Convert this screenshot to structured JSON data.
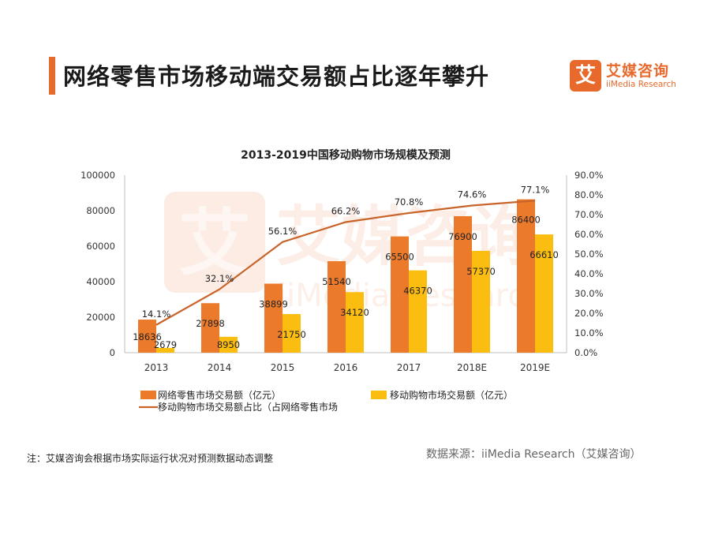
{
  "header": {
    "title": "网络零售市场移动端交易额占比逐年攀升"
  },
  "logo": {
    "mark": "艾",
    "name_cn": "艾媒咨询",
    "name_en": "iiMedia Research"
  },
  "watermark": {
    "mark": "艾",
    "name_cn": "艾媒咨询",
    "name_en": "iiMedia Research"
  },
  "chart_data": {
    "type": "bar",
    "title": "2013-2019中国移动购物市场规模及预测",
    "categories": [
      "2013",
      "2014",
      "2015",
      "2016",
      "2017",
      "2018E",
      "2019E"
    ],
    "series": [
      {
        "name": "网络零售市场交易额（亿元）",
        "type": "bar",
        "axis": "left",
        "color": "#ec7a2b",
        "values": [
          18636,
          27898,
          38899,
          51540,
          65500,
          76900,
          86400
        ],
        "labels": [
          "18636",
          "27898",
          "38899",
          "51540",
          "65500",
          "76900",
          "86400"
        ]
      },
      {
        "name": "移动购物市场交易额（亿元）",
        "type": "bar",
        "axis": "left",
        "color": "#fbbd0f",
        "values": [
          2679,
          8950,
          21750,
          34120,
          46370,
          57370,
          66610
        ],
        "labels": [
          "2679",
          "8950",
          "21750",
          "34120",
          "46370",
          "57370",
          "66610"
        ]
      },
      {
        "name": "移动购物市场交易额占比（占网络零售市场",
        "type": "line",
        "axis": "right",
        "color": "#c8642a",
        "values": [
          14.1,
          32.1,
          56.1,
          66.2,
          70.8,
          74.6,
          77.1
        ],
        "labels": [
          "14.1%",
          "32.1%",
          "56.1%",
          "66.2%",
          "70.8%",
          "74.6%",
          "77.1%"
        ]
      }
    ],
    "left_axis": {
      "ylim": [
        0,
        100000
      ],
      "ticks": [
        0,
        20000,
        40000,
        60000,
        80000,
        100000
      ],
      "tick_labels": [
        "0",
        "20000",
        "40000",
        "60000",
        "80000",
        "100000"
      ]
    },
    "right_axis": {
      "ylim": [
        0,
        90
      ],
      "ticks": [
        0,
        10,
        20,
        30,
        40,
        50,
        60,
        70,
        80,
        90
      ],
      "tick_labels": [
        "0.0%",
        "10.0%",
        "20.0%",
        "30.0%",
        "40.0%",
        "50.0%",
        "60.0%",
        "70.0%",
        "80.0%",
        "90.0%"
      ]
    },
    "grid": false,
    "legend_position": "bottom"
  },
  "footer": {
    "note": "注：艾媒咨询会根据市场实际运行状况对预测数据动态调整",
    "source": "数据来源：iiMedia Research（艾媒咨询）"
  }
}
